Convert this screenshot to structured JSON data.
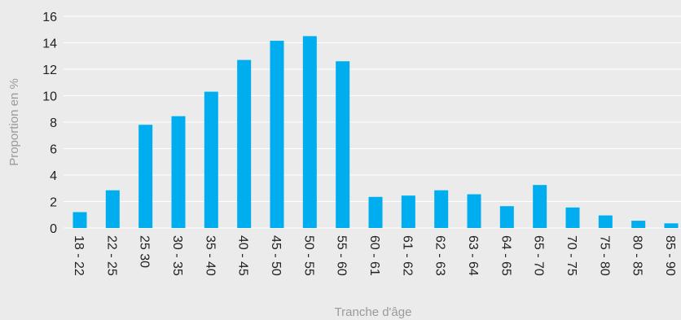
{
  "chart_data": {
    "type": "bar",
    "title": "",
    "xlabel": "Tranche d'âge",
    "ylabel": "Proportion en %",
    "ylim": [
      0,
      16
    ],
    "yticks": [
      0,
      2,
      4,
      6,
      8,
      10,
      12,
      14,
      16
    ],
    "categories": [
      "18 - 22",
      "22 - 25",
      "25 30",
      "30 - 35",
      "35 - 40",
      "40 - 45",
      "45 - 50",
      "50 - 55",
      "55 - 60",
      "60 - 61",
      "61 - 62",
      "62 - 63",
      "63 - 64",
      "64 - 65",
      "65 - 70",
      "70 - 75",
      "75 - 80",
      "80 - 85",
      "85 - 90"
    ],
    "values": [
      1.2,
      2.85,
      7.8,
      8.45,
      10.3,
      12.7,
      14.15,
      14.5,
      12.6,
      2.35,
      2.45,
      2.85,
      2.55,
      1.65,
      3.25,
      1.55,
      0.95,
      0.55,
      0.35
    ],
    "grid": true,
    "legend": "none",
    "bar_color": "#00aeef",
    "grid_color": "#ffffff",
    "background_color": "#ebebeb"
  }
}
